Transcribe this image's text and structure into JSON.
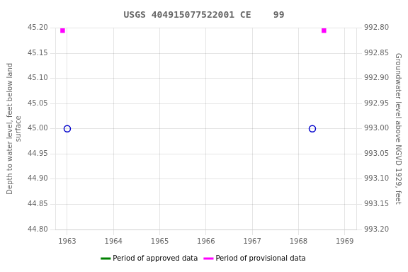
{
  "chart_data": {
    "type": "scatter",
    "title": "USGS 404915077522001 CE    99",
    "x_label": null,
    "y_label": "Depth to water level, feet below land\nsurface",
    "y2_label": "Groundwater level above NGVD 1929, feet",
    "xlim": [
      1962.75,
      1969.25
    ],
    "xticks": [
      1963,
      1964,
      1965,
      1966,
      1967,
      1968,
      1969
    ],
    "ylim": [
      44.8,
      45.2
    ],
    "yticks": [
      {
        "value": 44.8,
        "label": "44.80"
      },
      44.85,
      {
        "value": 44.9,
        "label": "44.90"
      },
      44.95,
      {
        "value": 45.0,
        "label": "45.00"
      },
      45.05,
      {
        "value": 45.1,
        "label": "45.10"
      },
      45.15,
      {
        "value": 45.2,
        "label": "45.20"
      }
    ],
    "y2lim": [
      993.2,
      992.8
    ],
    "y2ticks": [
      {
        "value": 993.2,
        "label": "993.20"
      },
      993.15,
      {
        "value": 993.1,
        "label": "993.10"
      },
      993.05,
      {
        "value": 993.0,
        "label": "993.00"
      },
      992.95,
      {
        "value": 992.9,
        "label": "992.90"
      },
      992.85,
      {
        "value": 992.8,
        "label": "992.80"
      }
    ],
    "grid": true,
    "legend": "bottom",
    "legend_entries": [
      {
        "name": "Period of approved data",
        "color": "#008000"
      },
      {
        "name": "Period of provisional data",
        "color": "#ff00ff"
      }
    ],
    "series": [
      {
        "marker": "open_circle",
        "color": "#0000cc",
        "x": [
          1963.0,
          1968.3
        ],
        "values": [
          45.0,
          45.0
        ]
      },
      {
        "marker": "square",
        "color": "#ff00ff",
        "x": [
          1962.9,
          1968.55
        ],
        "values": [
          45.195,
          45.195
        ]
      }
    ]
  }
}
